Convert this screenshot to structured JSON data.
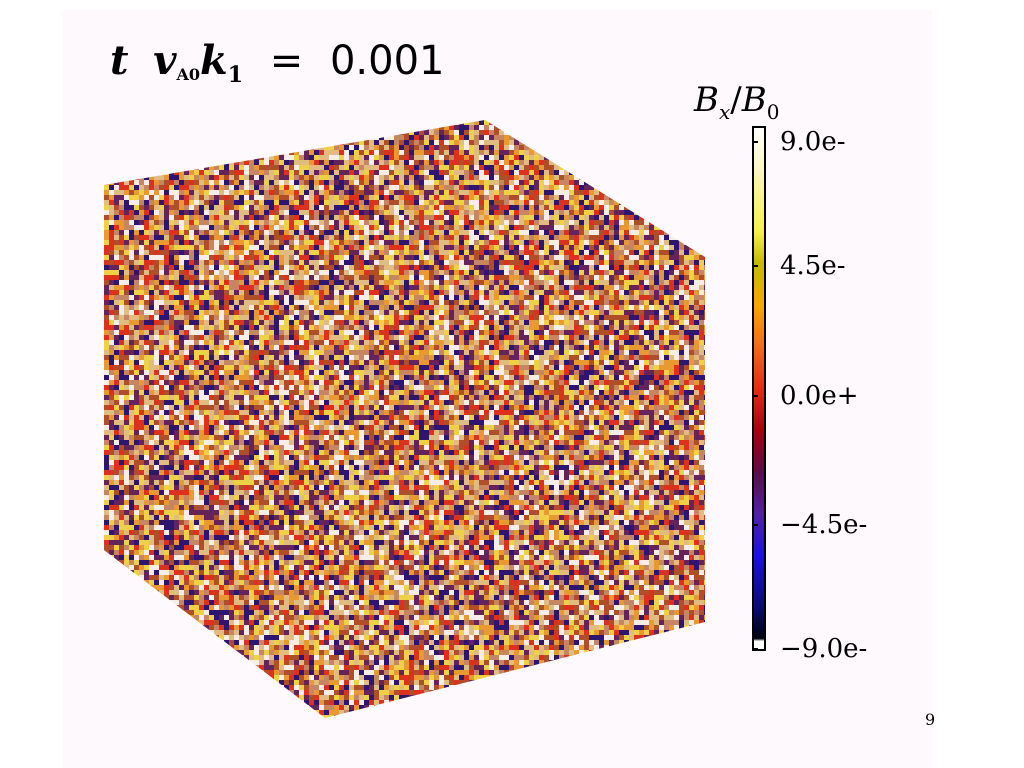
{
  "time_label": {
    "symbol_t": "t",
    "symbol_v": "v",
    "subscript_v": "A0",
    "symbol_k": "k",
    "subscript_k": "1",
    "equals": "=",
    "value": "0.001"
  },
  "colorbar": {
    "numerator": "B",
    "numerator_sub": "x",
    "slash": "/",
    "denominator": "B",
    "denominator_sub": "0",
    "ticks": [
      "9.0e-",
      "4.5e-",
      "0.0e+",
      "−4.5e-",
      "−9.0e-"
    ],
    "colors": {
      "top": "#ffffff",
      "yellow": "#f7ef48",
      "orange": "#f6a800",
      "red": "#e82a14",
      "purple": "#5420a0",
      "blue": "#1a10e8",
      "bottom": "#000010"
    }
  },
  "cube": {
    "noise_colors": [
      "#f7e04a",
      "#ffffff",
      "#e22a18",
      "#b04a28",
      "#1c0a78",
      "#f0a030",
      "#c98a6a",
      "#5a1a60",
      "#e8c88a"
    ]
  },
  "page_number": "9"
}
